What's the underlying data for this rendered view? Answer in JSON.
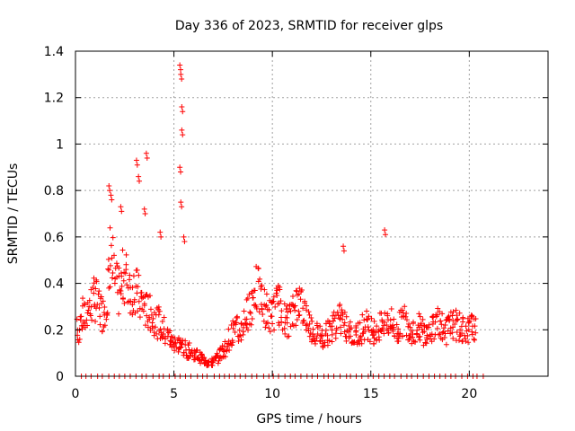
{
  "chart_data": {
    "type": "scatter",
    "title": "Day 336 of 2023, SRMTID for receiver glps",
    "xlabel": "GPS time / hours",
    "ylabel": "SRMTID / TECUs",
    "xlim": [
      0,
      24
    ],
    "ylim": [
      0,
      1.4
    ],
    "x_ticks": [
      0,
      5,
      10,
      15,
      20
    ],
    "x_tick_labels": [
      "0",
      "5",
      "10",
      "15",
      "20"
    ],
    "y_ticks": [
      0,
      0.2,
      0.4,
      0.6,
      0.8,
      1.0,
      1.2,
      1.4
    ],
    "y_tick_labels": [
      "0",
      "0.2",
      "0.4",
      "0.6",
      "0.8",
      "1",
      "1.2",
      "1.4"
    ],
    "grid": true,
    "marker": "+",
    "series": [
      {
        "name": "SRMTID",
        "color": "#ff0000",
        "x_step_hours": 0.1,
        "x_start_hours": 0.0,
        "values": [
          0.17,
          0.21,
          0.2,
          0.25,
          0.26,
          0.25,
          0.29,
          0.3,
          0.31,
          0.33,
          0.33,
          0.32,
          0.3,
          0.28,
          0.27,
          0.3,
          0.35,
          0.4,
          0.52,
          0.48,
          0.42,
          0.38,
          0.36,
          0.38,
          0.42,
          0.44,
          0.42,
          0.4,
          0.38,
          0.37,
          0.38,
          0.36,
          0.34,
          0.32,
          0.32,
          0.3,
          0.28,
          0.28,
          0.27,
          0.26,
          0.25,
          0.24,
          0.23,
          0.22,
          0.21,
          0.2,
          0.18,
          0.17,
          0.16,
          0.15,
          0.15,
          0.14,
          0.14,
          0.13,
          0.13,
          0.12,
          0.12,
          0.11,
          0.11,
          0.1,
          0.1,
          0.09,
          0.09,
          0.08,
          0.08,
          0.07,
          0.07,
          0.06,
          0.06,
          0.06,
          0.06,
          0.07,
          0.08,
          0.09,
          0.1,
          0.11,
          0.12,
          0.14,
          0.16,
          0.18,
          0.19,
          0.2,
          0.2,
          0.19,
          0.2,
          0.22,
          0.24,
          0.26,
          0.28,
          0.31,
          0.34,
          0.36,
          0.37,
          0.36,
          0.34,
          0.32,
          0.3,
          0.28,
          0.27,
          0.26,
          0.27,
          0.28,
          0.3,
          0.31,
          0.3,
          0.28,
          0.25,
          0.24,
          0.24,
          0.25,
          0.27,
          0.29,
          0.31,
          0.33,
          0.32,
          0.3,
          0.28,
          0.26,
          0.24,
          0.22,
          0.21,
          0.2,
          0.19,
          0.18,
          0.18,
          0.17,
          0.17,
          0.18,
          0.19,
          0.2,
          0.21,
          0.22,
          0.23,
          0.24,
          0.24,
          0.24,
          0.23,
          0.22,
          0.21,
          0.2,
          0.19,
          0.18,
          0.17,
          0.18,
          0.19,
          0.2,
          0.21,
          0.22,
          0.22,
          0.22,
          0.21,
          0.2,
          0.19,
          0.19,
          0.2,
          0.21,
          0.22,
          0.23,
          0.24,
          0.24,
          0.23,
          0.22,
          0.2,
          0.19,
          0.2,
          0.22,
          0.24,
          0.24,
          0.23,
          0.22,
          0.21,
          0.2,
          0.2,
          0.2,
          0.21,
          0.21,
          0.2,
          0.19,
          0.18,
          0.18,
          0.19,
          0.2,
          0.22,
          0.24,
          0.25,
          0.24,
          0.22,
          0.2,
          0.19,
          0.2,
          0.21,
          0.22,
          0.22,
          0.22,
          0.21,
          0.21,
          0.2,
          0.2,
          0.2,
          0.2,
          0.21,
          0.21,
          0.22,
          0.22
        ]
      }
    ],
    "spikes": [
      {
        "x": 1.7,
        "y": 0.82
      },
      {
        "x": 1.8,
        "y": 0.78
      },
      {
        "x": 3.1,
        "y": 0.93
      },
      {
        "x": 3.2,
        "y": 0.86
      },
      {
        "x": 3.6,
        "y": 0.96
      },
      {
        "x": 3.5,
        "y": 0.72
      },
      {
        "x": 5.3,
        "y": 1.34
      },
      {
        "x": 5.35,
        "y": 1.3
      },
      {
        "x": 5.4,
        "y": 1.16
      },
      {
        "x": 5.4,
        "y": 1.06
      },
      {
        "x": 5.3,
        "y": 0.9
      },
      {
        "x": 5.35,
        "y": 0.75
      },
      {
        "x": 5.5,
        "y": 0.6
      },
      {
        "x": 13.6,
        "y": 0.56
      },
      {
        "x": 15.7,
        "y": 0.63
      },
      {
        "x": 2.3,
        "y": 0.73
      },
      {
        "x": 4.3,
        "y": 0.62
      }
    ]
  }
}
